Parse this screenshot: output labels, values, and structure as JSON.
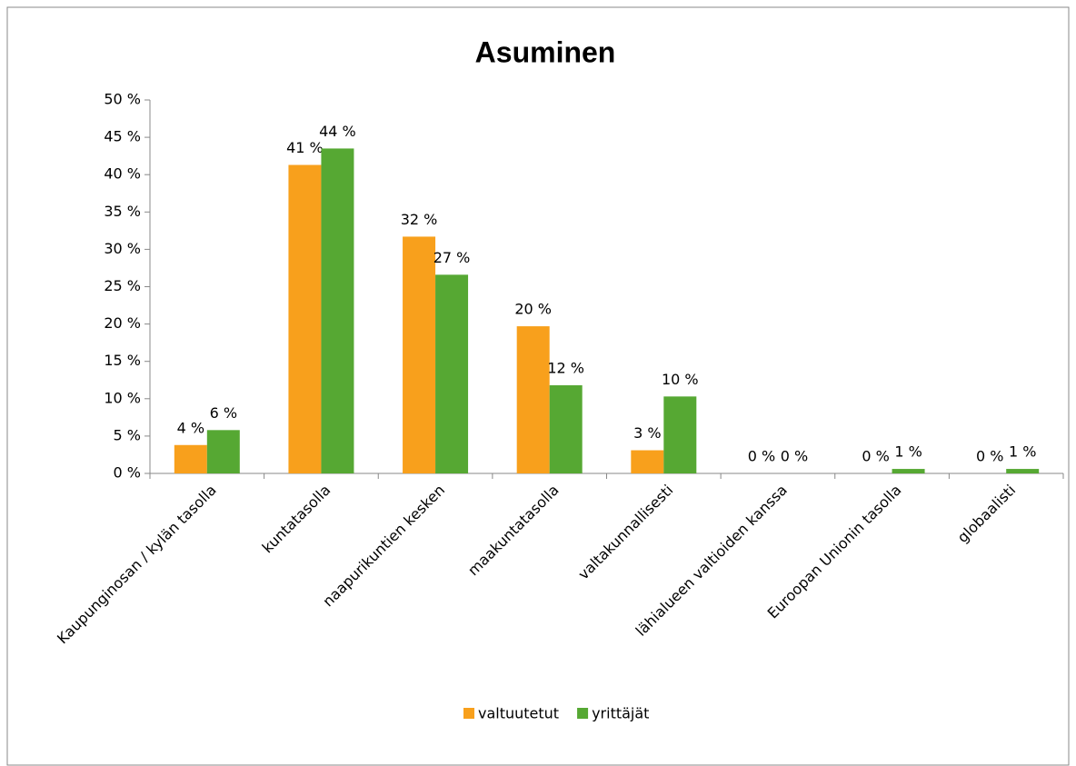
{
  "chart_data": {
    "type": "bar",
    "title": "Asuminen",
    "categories": [
      "Kaupunginosan / kylän tasolla",
      "kuntatasolla",
      "naapurikuntien kesken",
      "maakuntatasolla",
      "valtakunnallisesti",
      "lähialueen valtioiden kanssa",
      "Euroopan Unionin tasolla",
      "globaalisti"
    ],
    "series": [
      {
        "name": "valtuutetut",
        "color": "#f8a01c",
        "values": [
          3.8,
          41.3,
          31.7,
          19.7,
          3.1,
          0,
          0,
          0
        ],
        "value_labels": [
          "4 %",
          "41 %",
          "32 %",
          "20 %",
          "3 %",
          "0 %",
          "0 %",
          "0 %"
        ]
      },
      {
        "name": "yrittäjät",
        "color": "#56a833",
        "values": [
          5.8,
          43.5,
          26.6,
          11.8,
          10.3,
          0,
          0.6,
          0.6
        ],
        "value_labels": [
          "6 %",
          "44 %",
          "27 %",
          "12 %",
          "10 %",
          "0 %",
          "1 %",
          "1 %"
        ]
      }
    ],
    "ylim": [
      0,
      50
    ],
    "yticks": [
      {
        "value": 0,
        "label": "0 %"
      },
      {
        "value": 5,
        "label": "5 %"
      },
      {
        "value": 10,
        "label": "10 %"
      },
      {
        "value": 15,
        "label": "15 %"
      },
      {
        "value": 20,
        "label": "20 %"
      },
      {
        "value": 25,
        "label": "25 %"
      },
      {
        "value": 30,
        "label": "30 %"
      },
      {
        "value": 35,
        "label": "35 %"
      },
      {
        "value": 40,
        "label": "40 %"
      },
      {
        "value": 45,
        "label": "45 %"
      },
      {
        "value": 50,
        "label": "50 %"
      }
    ],
    "legend": "bottom"
  }
}
